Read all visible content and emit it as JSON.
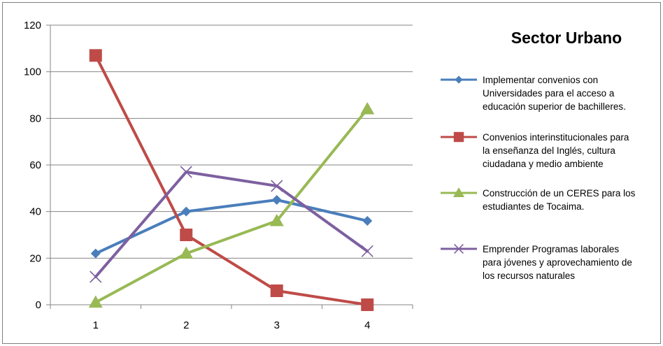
{
  "chart_data": {
    "type": "line",
    "title": "Sector Urbano",
    "categories": [
      "1",
      "2",
      "3",
      "4"
    ],
    "ylim": [
      0,
      120
    ],
    "yticks": [
      0,
      20,
      40,
      60,
      80,
      100,
      120
    ],
    "grid": true,
    "legend_position": "right",
    "series": [
      {
        "name": "Implementar convenios con Universidades para el acceso a educación superior de bachilleres.",
        "legend_lines": [
          "Implementar convenios con",
          "Universidades para el acceso a",
          "educación superior de bachilleres."
        ],
        "values": [
          22,
          40,
          45,
          36
        ],
        "color": "#4a7ebb",
        "marker": "diamond"
      },
      {
        "name": "Convenios interinstitucionales para la enseñanza del Inglés, cultura ciudadana y medio ambiente",
        "legend_lines": [
          "Convenios interinstitucionales para",
          "la enseñanza del Inglés, cultura",
          "ciudadana y medio ambiente"
        ],
        "values": [
          107,
          30,
          6,
          0
        ],
        "color": "#be4b48",
        "marker": "square"
      },
      {
        "name": "Construcción de un CERES para los estudiantes de Tocaima.",
        "legend_lines": [
          "Construcción de un CERES para los",
          "estudiantes de Tocaima."
        ],
        "values": [
          1,
          22,
          36,
          84
        ],
        "color": "#98b954",
        "marker": "triangle"
      },
      {
        "name": "Emprender Programas laborales para jóvenes y aprovechamiento de los recursos naturales",
        "legend_lines": [
          "Emprender Programas laborales",
          "para jóvenes y aprovechamiento de",
          "los recursos naturales"
        ],
        "values": [
          12,
          57,
          51,
          23
        ],
        "color": "#7d60a0",
        "marker": "x"
      }
    ]
  }
}
